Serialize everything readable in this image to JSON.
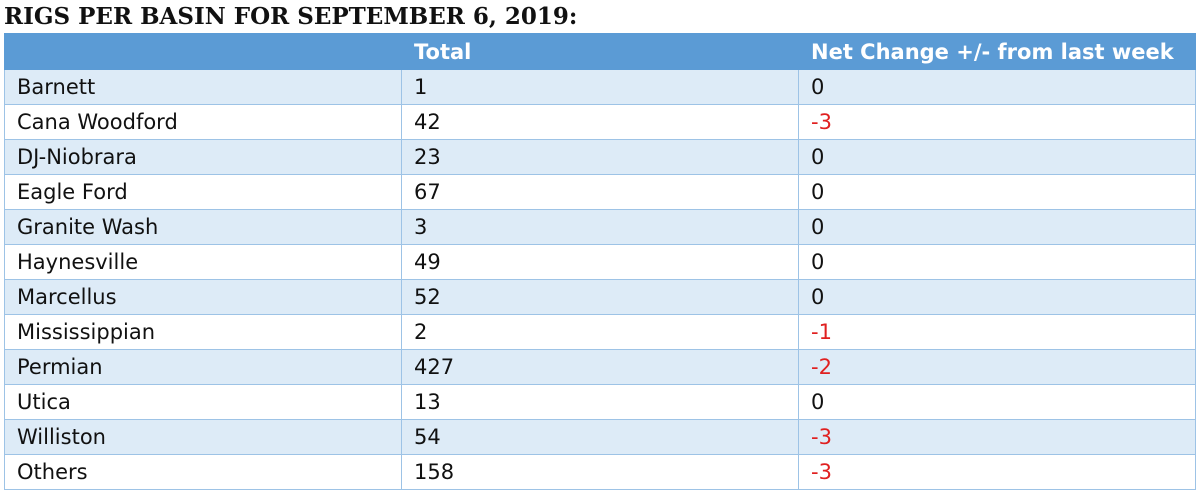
{
  "title": "RIGS PER BASIN FOR SEPTEMBER 6, 2019:",
  "headers": [
    "",
    "Total",
    "Net Change +/- from last week"
  ],
  "colors": {
    "header_bg": "#5b9bd5",
    "band": "#ddebf7",
    "negative": "#e02020"
  },
  "rows": [
    {
      "basin": "Barnett",
      "total": "1",
      "change": "0"
    },
    {
      "basin": "Cana Woodford",
      "total": "42",
      "change": "-3"
    },
    {
      "basin": "DJ-Niobrara",
      "total": "23",
      "change": "0"
    },
    {
      "basin": "Eagle Ford",
      "total": "67",
      "change": "0"
    },
    {
      "basin": "Granite Wash",
      "total": "3",
      "change": "0"
    },
    {
      "basin": "Haynesville",
      "total": "49",
      "change": "0"
    },
    {
      "basin": "Marcellus",
      "total": "52",
      "change": "0"
    },
    {
      "basin": "Mississippian",
      "total": "2",
      "change": "-1"
    },
    {
      "basin": "Permian",
      "total": "427",
      "change": "-2"
    },
    {
      "basin": "Utica",
      "total": "13",
      "change": "0"
    },
    {
      "basin": "Williston",
      "total": "54",
      "change": "-3"
    },
    {
      "basin": "Others",
      "total": "158",
      "change": "-3"
    }
  ]
}
